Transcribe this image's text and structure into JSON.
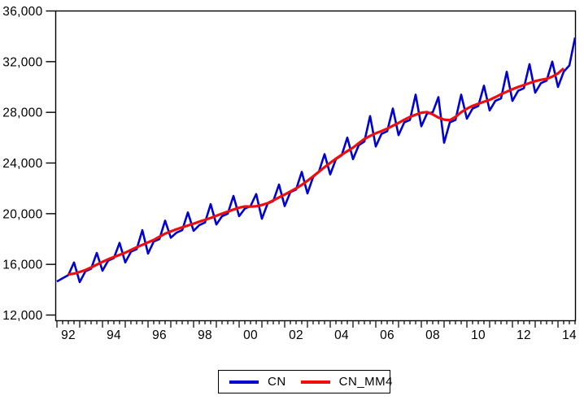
{
  "window": {
    "background": "#ffffff"
  },
  "chart_data": {
    "type": "line",
    "title": "",
    "x_range": {
      "start": "1992Q1",
      "end": "2014Q4",
      "frequency": "quarterly",
      "points": 92
    },
    "grid": false,
    "y_axis": {
      "min": 12000,
      "max": 36000,
      "step": 4000,
      "ticks": [
        {
          "value": 12000,
          "label": "12,000"
        },
        {
          "value": 16000,
          "label": "16,000"
        },
        {
          "value": 20000,
          "label": "20,000"
        },
        {
          "value": 24000,
          "label": "24,000"
        },
        {
          "value": 28000,
          "label": "28,000"
        },
        {
          "value": 32000,
          "label": "32,000"
        },
        {
          "value": 36000,
          "label": "36,000"
        }
      ]
    },
    "x_axis": {
      "minor_tick": "quarter",
      "major_tick": "year",
      "labels": [
        {
          "year": 1992,
          "label": "92"
        },
        {
          "year": 1994,
          "label": "94"
        },
        {
          "year": 1996,
          "label": "96"
        },
        {
          "year": 1998,
          "label": "98"
        },
        {
          "year": 2000,
          "label": "00"
        },
        {
          "year": 2002,
          "label": "02"
        },
        {
          "year": 2004,
          "label": "04"
        },
        {
          "year": 2006,
          "label": "06"
        },
        {
          "year": 2008,
          "label": "08"
        },
        {
          "year": 2010,
          "label": "10"
        },
        {
          "year": 2012,
          "label": "12"
        }
      ],
      "last_label": {
        "year": 2014,
        "label": "14"
      }
    },
    "legend": {
      "position": "bottom-center",
      "items": [
        {
          "label": "CN",
          "color": "#0000d0"
        },
        {
          "label": "CN_MM4",
          "color": "#ee0e0e"
        }
      ]
    },
    "series": [
      {
        "name": "CN",
        "color": "#0000d0",
        "stroke_width": 2.6,
        "start_index": 0,
        "values": [
          14650,
          14900,
          15150,
          16150,
          14600,
          15450,
          15650,
          16900,
          15500,
          16300,
          16500,
          17700,
          16150,
          17000,
          17200,
          18700,
          16850,
          17800,
          18000,
          19450,
          18100,
          18500,
          18700,
          20100,
          18650,
          19100,
          19300,
          20750,
          19150,
          19800,
          20000,
          21400,
          19800,
          20400,
          20600,
          21550,
          19600,
          20800,
          21000,
          22300,
          20600,
          21700,
          21900,
          23300,
          21600,
          22900,
          23300,
          24700,
          23100,
          24300,
          24600,
          26000,
          24300,
          25400,
          25700,
          27700,
          25300,
          26300,
          26500,
          28300,
          26200,
          27200,
          27400,
          29400,
          26900,
          27900,
          28000,
          29200,
          25600,
          27200,
          27400,
          29400,
          27500,
          28300,
          28500,
          30100,
          28150,
          28900,
          29100,
          31200,
          28900,
          29700,
          29900,
          31800,
          29550,
          30300,
          30500,
          32000,
          30000,
          31200,
          31700,
          33900
        ]
      },
      {
        "name": "CN_MM4",
        "color": "#ee0e0e",
        "stroke_width": 3.2,
        "start_index": 2,
        "values": [
          15206,
          15269,
          15400,
          15556,
          15763,
          15981,
          16194,
          16400,
          16581,
          16750,
          16925,
          17138,
          17350,
          17538,
          17738,
          17931,
          18181,
          18425,
          18600,
          18769,
          18919,
          19063,
          19213,
          19369,
          19513,
          19663,
          19838,
          20006,
          20169,
          20325,
          20475,
          20569,
          20563,
          20588,
          20688,
          20831,
          21050,
          21288,
          21513,
          21750,
          22000,
          22275,
          22600,
          22950,
          23313,
          23675,
          24013,
          24338,
          24650,
          24938,
          25213,
          25563,
          25900,
          26138,
          26350,
          26525,
          26713,
          26938,
          27163,
          27413,
          27638,
          27813,
          27975,
          28025,
          27838,
          27588,
          27425,
          27375,
          27638,
          28013,
          28288,
          28513,
          28681,
          28838,
          28988,
          29200,
          29431,
          29625,
          29825,
          30000,
          30156,
          30313,
          30463,
          30563,
          30644,
          30813,
          31075,
          31463
        ]
      }
    ]
  }
}
